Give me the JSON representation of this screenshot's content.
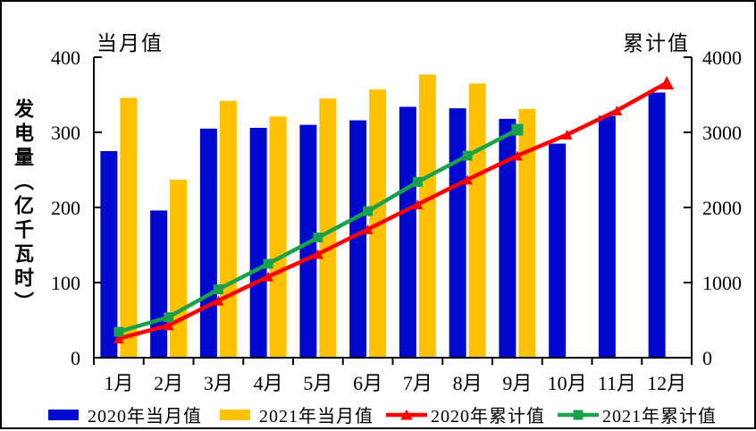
{
  "header": {
    "left_axis_title": "当月值",
    "right_axis_title": "累计值"
  },
  "y_axis_title": "发电量（亿千瓦时）",
  "colors": {
    "bar_2020": "#0009CD",
    "bar_2021": "#FFC000",
    "line_2020": "#FF0000",
    "line_2021": "#19A24A",
    "axis": "#000000"
  },
  "chart_data": {
    "type": "bar+line",
    "title": "",
    "categories": [
      "1月",
      "2月",
      "3月",
      "4月",
      "5月",
      "6月",
      "7月",
      "8月",
      "9月",
      "10月",
      "11月",
      "12月"
    ],
    "left_axis": {
      "title": "当月值",
      "ticks": [
        0,
        100,
        200,
        300,
        400
      ],
      "min": 0,
      "max": 400
    },
    "right_axis": {
      "title": "累计值",
      "ticks": [
        0,
        1000,
        2000,
        3000,
        4000
      ],
      "min": 0,
      "max": 4000
    },
    "legend_position": "bottom",
    "grid": false,
    "series": [
      {
        "name": "2020年当月值",
        "kind": "bar",
        "axis": "left",
        "color_key": "bar_2020",
        "values": [
          275,
          196,
          305,
          306,
          310,
          316,
          334,
          332,
          318,
          285,
          322,
          353
        ]
      },
      {
        "name": "2021年当月值",
        "kind": "bar",
        "axis": "left",
        "color_key": "bar_2021",
        "values": [
          346,
          237,
          342,
          321,
          345,
          357,
          377,
          365,
          331,
          null,
          null,
          null
        ]
      },
      {
        "name": "2020年累计值",
        "kind": "line",
        "marker": "triangle",
        "axis": "right",
        "color_key": "line_2020",
        "values": [
          255,
          430,
          760,
          1080,
          1380,
          1710,
          2040,
          2370,
          2690,
          2970,
          3290,
          3660
        ]
      },
      {
        "name": "2021年累计值",
        "kind": "line",
        "marker": "square",
        "axis": "right",
        "color_key": "line_2021",
        "values": [
          345,
          540,
          910,
          1250,
          1600,
          1950,
          2340,
          2690,
          3035,
          null,
          null,
          null
        ]
      }
    ]
  }
}
